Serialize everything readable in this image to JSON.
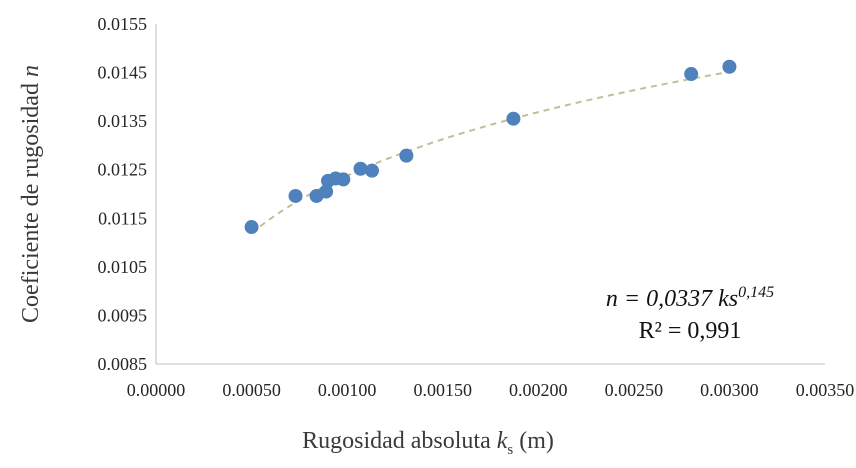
{
  "chart_data": {
    "type": "scatter",
    "xlabel_prefix": "Rugosidad absoluta ",
    "xlabel_var": "k",
    "xlabel_sub": "s",
    "xlabel_suffix": " (m)",
    "ylabel_prefix": "Coeficiente de rugosidad ",
    "ylabel_var": "n",
    "xlim": [
      0,
      0.0035
    ],
    "ylim": [
      0.0085,
      0.0155
    ],
    "xticks": [
      0,
      0.0005,
      0.001,
      0.0015,
      0.002,
      0.0025,
      0.003,
      0.0035
    ],
    "xtick_labels": [
      "0.00000",
      "0.00050",
      "0.00100",
      "0.00150",
      "0.00200",
      "0.00250",
      "0.00300",
      "0.00350"
    ],
    "yticks": [
      0.0085,
      0.0095,
      0.0105,
      0.0115,
      0.0125,
      0.0135,
      0.0145,
      0.0155
    ],
    "ytick_labels": [
      "0.0085",
      "0.0095",
      "0.0105",
      "0.0115",
      "0.0125",
      "0.0135",
      "0.0145",
      "0.0155"
    ],
    "grid": false,
    "series": [
      {
        "marker_color": "#4f81bd",
        "points": [
          {
            "x": 0.0005,
            "y": 0.01132
          },
          {
            "x": 0.00073,
            "y": 0.01196
          },
          {
            "x": 0.00084,
            "y": 0.01196
          },
          {
            "x": 0.00089,
            "y": 0.01205
          },
          {
            "x": 0.0009,
            "y": 0.01227
          },
          {
            "x": 0.00094,
            "y": 0.01232
          },
          {
            "x": 0.00098,
            "y": 0.0123
          },
          {
            "x": 0.00107,
            "y": 0.01252
          },
          {
            "x": 0.00113,
            "y": 0.01248
          },
          {
            "x": 0.00131,
            "y": 0.01279
          },
          {
            "x": 0.00187,
            "y": 0.01355
          },
          {
            "x": 0.0028,
            "y": 0.01447
          },
          {
            "x": 0.003,
            "y": 0.01462
          }
        ]
      }
    ],
    "trendline": {
      "type": "power",
      "coefficient": 0.0337,
      "exponent": 0.145,
      "x_range": [
        0.0005,
        0.003
      ],
      "color": "#c4bd97",
      "style": "dashed"
    },
    "equation": {
      "lhs": "n",
      "rhs_coef": " = 0,0337 ks",
      "exponent": "0,145",
      "r2": "R² = 0,991"
    }
  }
}
